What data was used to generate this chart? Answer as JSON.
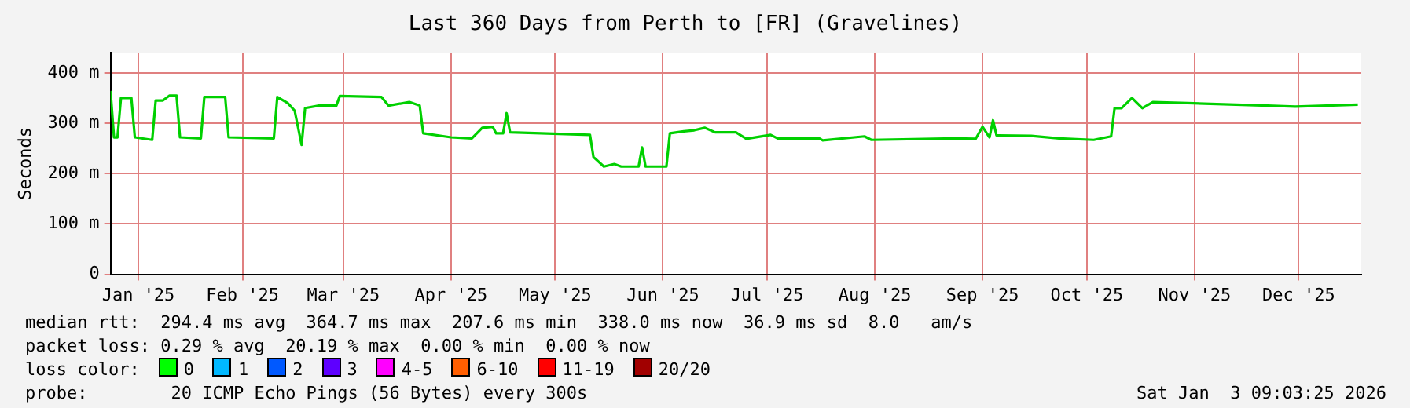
{
  "chart_data": {
    "type": "line",
    "title": "Last 360 Days from Perth to [FR] (Gravelines)",
    "ylabel": "Seconds",
    "x": [
      "2025-01-08",
      "2025-01-09",
      "2025-01-10",
      "2025-01-11",
      "2025-01-14",
      "2025-01-15",
      "2025-01-20",
      "2025-01-21",
      "2025-01-23",
      "2025-01-25",
      "2025-01-27",
      "2025-01-28",
      "2025-02-03",
      "2025-02-04",
      "2025-02-10",
      "2025-02-11",
      "2025-02-24",
      "2025-02-25",
      "2025-02-28",
      "2025-03-02",
      "2025-03-04",
      "2025-03-05",
      "2025-03-09",
      "2025-03-14",
      "2025-03-15",
      "2025-03-27",
      "2025-03-29",
      "2025-04-04",
      "2025-04-07",
      "2025-04-08",
      "2025-04-16",
      "2025-04-22",
      "2025-04-25",
      "2025-04-28",
      "2025-04-29",
      "2025-05-01",
      "2025-05-02",
      "2025-05-03",
      "2025-05-26",
      "2025-05-27",
      "2025-05-30",
      "2025-06-02",
      "2025-06-04",
      "2025-06-09",
      "2025-06-10",
      "2025-06-11",
      "2025-06-17",
      "2025-06-18",
      "2025-06-22",
      "2025-06-25",
      "2025-06-28",
      "2025-07-01",
      "2025-07-07",
      "2025-07-10",
      "2025-07-17",
      "2025-07-19",
      "2025-07-31",
      "2025-08-01",
      "2025-08-13",
      "2025-08-15",
      "2025-09-08",
      "2025-09-14",
      "2025-09-16",
      "2025-09-18",
      "2025-09-19",
      "2025-09-20",
      "2025-09-30",
      "2025-10-08",
      "2025-10-18",
      "2025-10-23",
      "2025-10-24",
      "2025-10-26",
      "2025-10-29",
      "2025-11-01",
      "2025-11-04",
      "2025-11-14",
      "2025-12-07",
      "2025-12-15",
      "2026-01-02"
    ],
    "series": [
      {
        "color": "#00d000",
        "values": [
          364,
          272,
          272,
          350,
          350,
          272,
          267,
          345,
          345,
          355,
          355,
          272,
          270,
          352,
          352,
          272,
          270,
          352,
          340,
          325,
          257,
          330,
          335,
          335,
          354,
          352,
          335,
          342,
          335,
          280,
          272,
          270,
          291,
          293,
          280,
          280,
          320,
          282,
          277,
          233,
          214,
          219,
          214,
          214,
          252,
          214,
          214,
          280,
          284,
          286,
          291,
          282,
          282,
          269,
          277,
          270,
          270,
          266,
          274,
          267,
          270,
          269,
          293,
          272,
          306,
          276,
          275,
          270,
          267,
          274,
          330,
          330,
          350,
          330,
          342,
          340,
          335,
          333,
          337
        ]
      }
    ],
    "xlim": [
      "2025-01-08",
      "2026-01-03"
    ],
    "xticks": [
      {
        "value": "2025-01-16",
        "label": "Jan '25"
      },
      {
        "value": "2025-02-15",
        "label": "Feb '25"
      },
      {
        "value": "2025-03-16",
        "label": "Mar '25"
      },
      {
        "value": "2025-04-16",
        "label": "Apr '25"
      },
      {
        "value": "2025-05-16",
        "label": "May '25"
      },
      {
        "value": "2025-06-16",
        "label": "Jun '25"
      },
      {
        "value": "2025-07-16",
        "label": "Jul '25"
      },
      {
        "value": "2025-08-16",
        "label": "Aug '25"
      },
      {
        "value": "2025-09-16",
        "label": "Sep '25"
      },
      {
        "value": "2025-10-16",
        "label": "Oct '25"
      },
      {
        "value": "2025-11-16",
        "label": "Nov '25"
      },
      {
        "value": "2025-12-16",
        "label": "Dec '25"
      }
    ],
    "ylim": [
      0,
      440
    ],
    "yticks": [
      0,
      {
        "value": 100,
        "label": "100 m"
      },
      {
        "value": 200,
        "label": "200 m"
      },
      {
        "value": 300,
        "label": "300 m"
      },
      {
        "value": 400,
        "label": "400 m"
      }
    ],
    "grid": true,
    "marker": "none",
    "line_style": "solid",
    "legend": false,
    "annotations": [
      "median rtt:  294.4 ms avg  364.7 ms max  207.6 ms min  338.0 ms now  36.9 ms sd  8.0   am/s",
      "packet loss: 0.29 % avg  20.19 % max  0.00 % min  0.00 % now",
      "loss color:  0  1  2  3  4-5  6-10  11-19  20/20",
      "probe:        20 ICMP Echo Pings (56 Bytes) every 300s",
      "Sat Jan  3 09:03:25 2026"
    ]
  }
}
